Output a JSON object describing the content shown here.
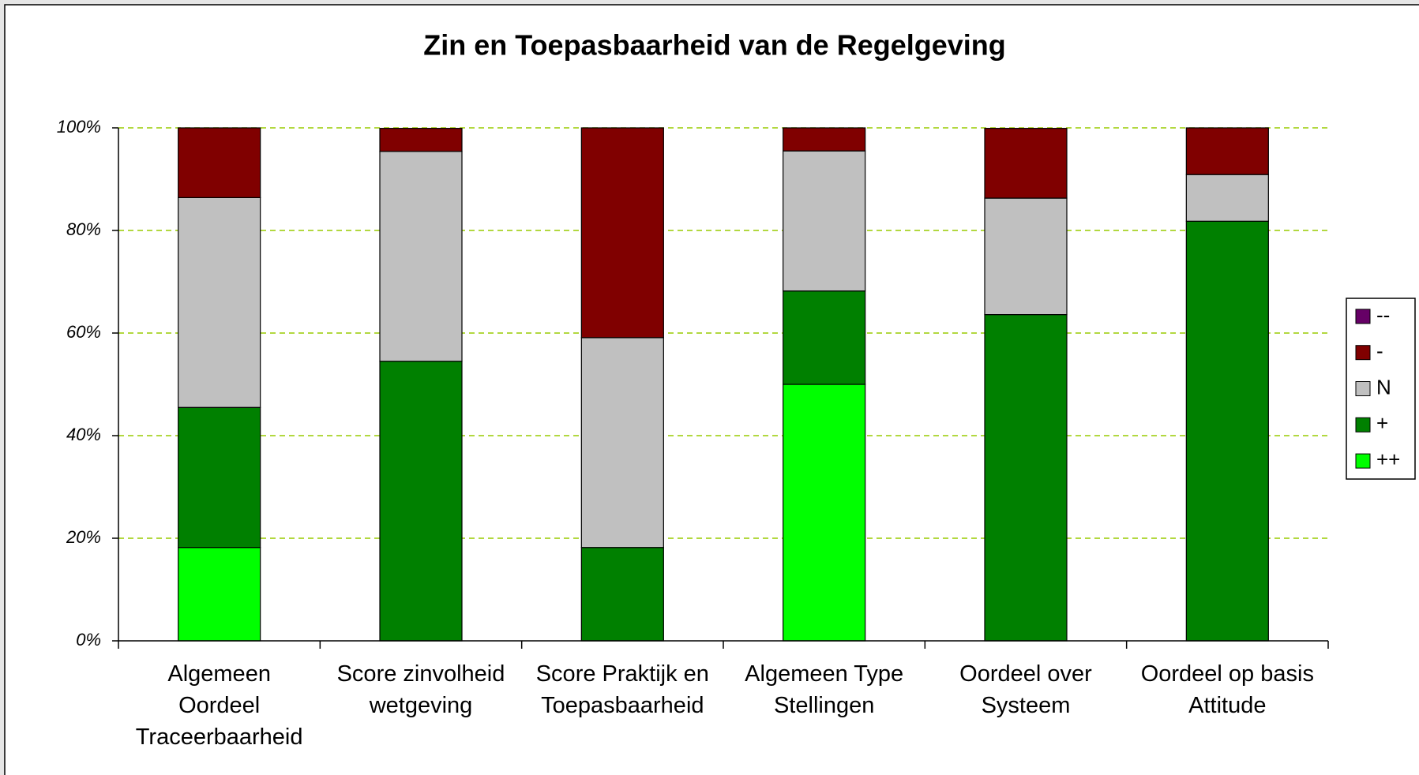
{
  "chart_data": {
    "type": "bar",
    "stacked": true,
    "title": "Zin en Toepasbaarheid van de Regelgeving",
    "categories": [
      "Algemeen\nOordeel\nTraceerbaarheid",
      "Score zinvolheid\nwetgeving",
      "Score Praktijk en\nToepasbaarheid",
      "Algemeen Type\nStellingen",
      "Oordeel over\nSysteem",
      "Oordeel op basis\nAttitude"
    ],
    "series": [
      {
        "name": "++",
        "color": "#00ff00",
        "values": [
          18.2,
          0,
          0,
          50,
          0,
          0
        ]
      },
      {
        "name": "+",
        "color": "#008000",
        "values": [
          27.3,
          54.5,
          18.2,
          18.2,
          63.6,
          81.8
        ]
      },
      {
        "name": "N",
        "color": "#c0c0c0",
        "values": [
          40.9,
          40.9,
          40.9,
          27.3,
          22.7,
          9.1
        ]
      },
      {
        "name": "-",
        "color": "#800000",
        "values": [
          13.6,
          4.5,
          40.9,
          4.5,
          13.6,
          9.1
        ]
      },
      {
        "name": "--",
        "color": "#660066",
        "values": [
          0,
          0,
          0,
          0,
          0,
          0
        ]
      }
    ],
    "ylim": [
      0,
      100
    ],
    "yticks": [
      {
        "value": 0,
        "label": "0%"
      },
      {
        "value": 20,
        "label": "20%"
      },
      {
        "value": 40,
        "label": "40%"
      },
      {
        "value": 60,
        "label": "60%"
      },
      {
        "value": 80,
        "label": "80%"
      },
      {
        "value": 100,
        "label": "100%"
      }
    ],
    "grid": true,
    "legend": "right"
  }
}
